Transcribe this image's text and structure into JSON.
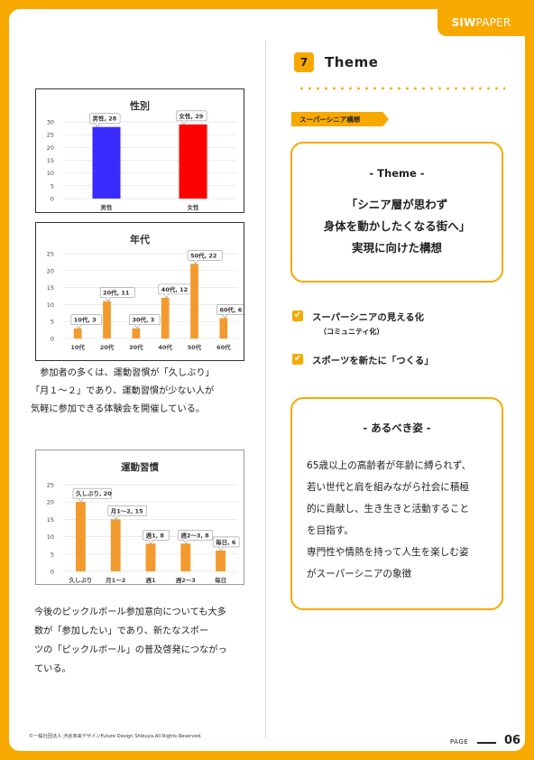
{
  "brand": {
    "bold": "SIW",
    "rest": " PAPER"
  },
  "section": {
    "number": "7",
    "title": "Theme"
  },
  "tag": "スーパーシニア構想",
  "theme_card": {
    "heading": "- Theme -",
    "lead": [
      "「シニア層が思わず",
      "身体を動かしたくなる街へ」",
      "実現に向けた構想"
    ]
  },
  "checklist": [
    {
      "label": "スーパーシニアの見える化",
      "sub": "（コミュニティ化）"
    },
    {
      "label": "スポーツを新たに「つくる」",
      "sub": ""
    }
  ],
  "ideal_card": {
    "heading": "- あるべき姿 -",
    "lines": [
      "65歳以上の高齢者が年齢に縛られず、",
      "若い世代と肩を組みながら社会に積極",
      "的に貢献し、生き生きと活動すること",
      "を目指す。",
      "専門性や情熱を持って人生を楽しむ姿",
      "がスーパーシニアの象徴"
    ]
  },
  "paragraph1": [
    "　参加者の多くは、運動習慣が「久しぶり」",
    "「月１～２」であり、運動習慣が少ない人が",
    "気軽に参加できる体験会を開催している。"
  ],
  "paragraph2": [
    "今後のピックルボール参加意向についても大多",
    "数が「参加したい」であり、新たなスポー",
    "ツの「ピックルボール」の普及啓発につながっ",
    "ている。"
  ],
  "footer": {
    "copyright": "©一般社団法人 渋谷未来デザインFuture Design Shibuya.All Rights Reserved.",
    "page_label": "PAGE",
    "page_number": "06"
  },
  "colors": {
    "accent": "#f7a900",
    "male": "#3a2cff",
    "female": "#ff0000",
    "bar": "#f39a2e"
  },
  "chart_data": [
    {
      "type": "bar",
      "title": "性別",
      "categories": [
        "男性",
        "女性"
      ],
      "values": [
        28,
        29
      ],
      "data_labels": [
        "男性, 28",
        "女性, 29"
      ],
      "ylim": [
        0,
        30
      ],
      "yticks": [
        0,
        5,
        10,
        15,
        20,
        25,
        30
      ],
      "grid": true
    },
    {
      "type": "bar",
      "title": "年代",
      "categories": [
        "10代",
        "20代",
        "30代",
        "40代",
        "50代",
        "60代"
      ],
      "values": [
        3,
        11,
        3,
        12,
        22,
        6
      ],
      "data_labels": [
        "10代, 3",
        "20代, 11",
        "30代, 3",
        "40代, 12",
        "50代, 22",
        "60代, 6"
      ],
      "ylim": [
        0,
        25
      ],
      "yticks": [
        0,
        5,
        10,
        15,
        20,
        25
      ],
      "grid": true
    },
    {
      "type": "bar",
      "title": "運動習慣",
      "categories": [
        "久しぶり",
        "月1～2",
        "週1",
        "週2～3",
        "毎日"
      ],
      "values": [
        20,
        15,
        8,
        8,
        6
      ],
      "data_labels": [
        "久しぶり, 20",
        "月1～2, 15",
        "週1, 8",
        "週2～3, 8",
        "毎日, 6"
      ],
      "ylim": [
        0,
        25
      ],
      "yticks": [
        0,
        5,
        10,
        15,
        20,
        25
      ],
      "grid": true
    }
  ]
}
